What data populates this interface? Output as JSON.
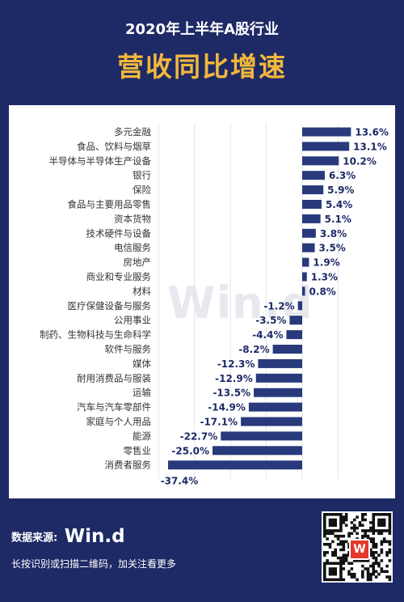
{
  "header": {
    "title": "2020年上半年A股行业",
    "subtitle": "营收同比增速"
  },
  "watermark": "Win.d",
  "footer": {
    "source_label": "数据来源:",
    "source_name": "Win.d",
    "note": "长按识别或扫描二维码，加关注看更多",
    "qr_badge": "W"
  },
  "colors": {
    "bar": "#283a7c",
    "background": "#1e2a66",
    "accent": "#f2b83b"
  },
  "chart_data": {
    "type": "bar",
    "orientation": "horizontal",
    "title": "营收同比增速",
    "xlabel": "",
    "ylabel": "",
    "unit": "%",
    "xlim": [
      -40,
      16
    ],
    "grid": true,
    "categories": [
      "多元金融",
      "食品、饮料与烟草",
      "半导体与半导体生产设备",
      "银行",
      "保险",
      "食品与主要用品零售",
      "资本货物",
      "技术硬件与设备",
      "电信服务",
      "房地产",
      "商业和专业服务",
      "材料",
      "医疗保健设备与服务",
      "公用事业",
      "制药、生物科技与生命科学",
      "软件与服务",
      "媒体",
      "耐用消费品与服装",
      "运输",
      "汽车与汽车零部件",
      "家庭与个人用品",
      "能源",
      "零售业",
      "消费者服务"
    ],
    "values": [
      13.6,
      13.1,
      10.2,
      6.3,
      5.9,
      5.4,
      5.1,
      3.8,
      3.5,
      1.9,
      1.3,
      0.8,
      -1.2,
      -3.5,
      -4.4,
      -8.2,
      -12.3,
      -12.9,
      -13.5,
      -14.9,
      -17.1,
      -22.7,
      -25.0,
      -37.4
    ],
    "value_labels": [
      "13.6%",
      "13.1%",
      "10.2%",
      "6.3%",
      "5.9%",
      "5.4%",
      "5.1%",
      "3.8%",
      "3.5%",
      "1.9%",
      "1.3%",
      "0.8%",
      "-1.2%",
      "-3.5%",
      "-4.4%",
      "-8.2%",
      "-12.3%",
      "-12.9%",
      "-13.5%",
      "-14.9%",
      "-17.1%",
      "-22.7%",
      "-25.0%",
      "-37.4%"
    ]
  }
}
